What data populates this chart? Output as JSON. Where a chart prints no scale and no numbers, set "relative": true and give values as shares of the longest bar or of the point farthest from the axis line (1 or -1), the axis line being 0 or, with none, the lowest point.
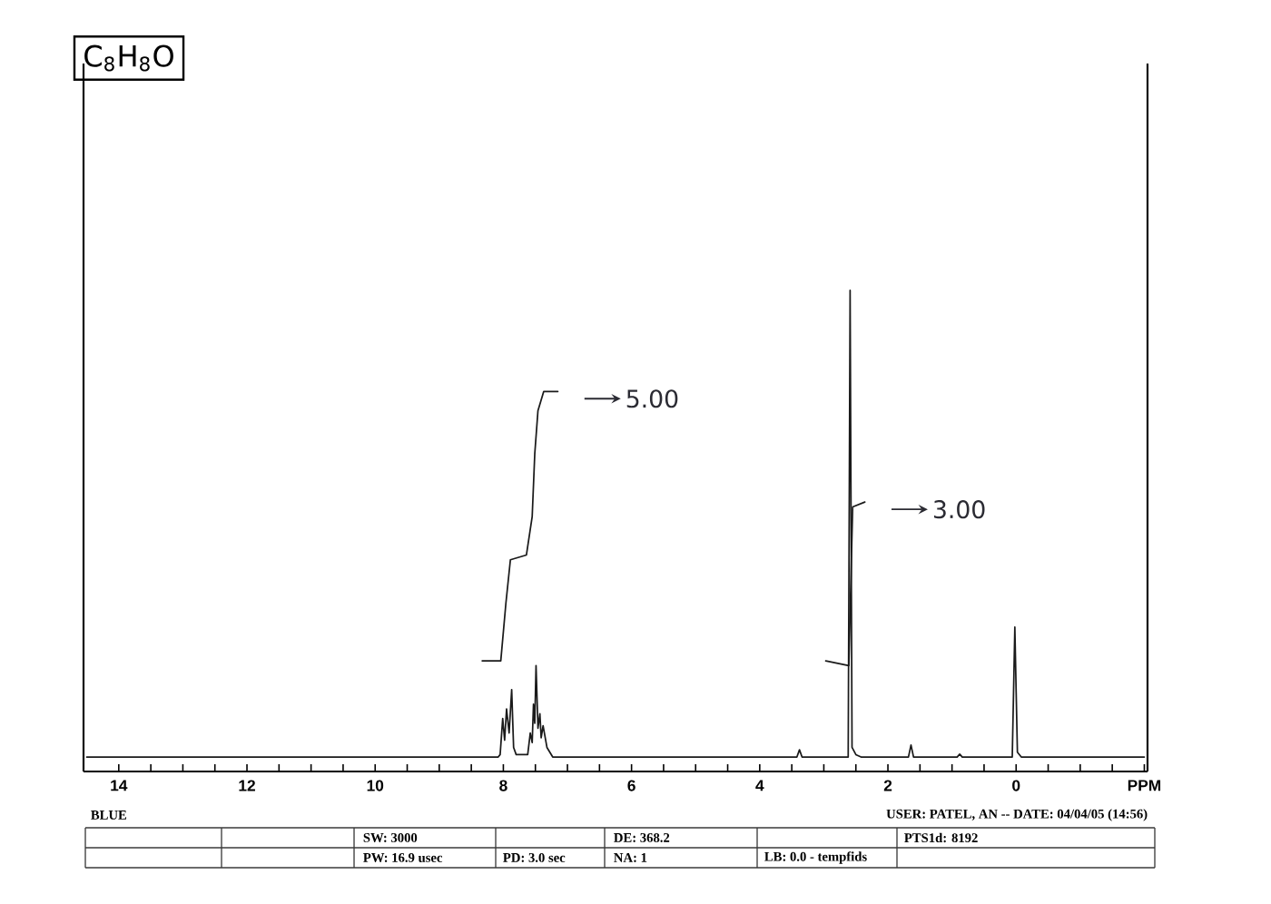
{
  "chart_data": {
    "type": "line",
    "title": "C$_{8}$H$_{8}$O",
    "relative": true,
    "xlim": [
      14.55,
      -2.05
    ],
    "xticks": [
      14,
      {
        "value": 13.5,
        "label": null
      },
      {
        "value": 13,
        "label": null
      },
      {
        "value": 12.5,
        "label": null
      },
      12,
      {
        "value": 11.5,
        "label": null
      },
      {
        "value": 11,
        "label": null
      },
      {
        "value": 10.5,
        "label": null
      },
      10,
      {
        "value": 9.5,
        "label": null
      },
      {
        "value": 9,
        "label": null
      },
      {
        "value": 8.5,
        "label": null
      },
      8,
      {
        "value": 7.5,
        "label": null
      },
      {
        "value": 7,
        "label": null
      },
      {
        "value": 6.5,
        "label": null
      },
      6,
      {
        "value": 5.5,
        "label": null
      },
      {
        "value": 5,
        "label": null
      },
      {
        "value": 4.5,
        "label": null
      },
      4,
      {
        "value": 3.5,
        "label": null
      },
      {
        "value": 3,
        "label": null
      },
      {
        "value": 2.5,
        "label": null
      },
      2,
      {
        "value": 1.5,
        "label": null
      },
      {
        "value": 1,
        "label": null
      },
      {
        "value": 0.5,
        "label": null
      },
      0,
      {
        "value": -0.5,
        "label": null
      },
      {
        "value": -1,
        "label": null
      },
      {
        "value": -1.5,
        "label": null
      },
      {
        "value": -2,
        "label": "PPM"
      }
    ],
    "series": [
      {
        "color": "#1a1a1a",
        "x": [
          14.5,
          8.08,
          8.05,
          8.01,
          7.98,
          7.95,
          7.91,
          7.87,
          7.84,
          7.8,
          7.62,
          7.58,
          7.55,
          7.53,
          7.51,
          7.49,
          7.46,
          7.43,
          7.41,
          7.38,
          7.32,
          7.23,
          3.42,
          3.38,
          3.34,
          2.62,
          2.59,
          2.56,
          2.5,
          2.42,
          1.68,
          1.64,
          1.6,
          0.92,
          0.88,
          0.84,
          0.06,
          0.02,
          -0.02,
          -0.08,
          -2.0
        ],
        "values": [
          0.03,
          0.03,
          0.035,
          0.11,
          0.065,
          0.13,
          0.08,
          0.17,
          0.05,
          0.035,
          0.035,
          0.08,
          0.06,
          0.14,
          0.1,
          0.22,
          0.09,
          0.12,
          0.07,
          0.095,
          0.05,
          0.03,
          0.03,
          0.045,
          0.03,
          0.03,
          1.0,
          0.05,
          0.035,
          0.03,
          0.03,
          0.055,
          0.03,
          0.03,
          0.036,
          0.03,
          0.03,
          0.3,
          0.04,
          0.03,
          0.03
        ]
      },
      {
        "color": "#1a1a1a",
        "x": [
          8.33,
          8.04,
          7.96,
          7.89,
          7.64,
          7.55,
          7.51,
          7.46,
          7.37,
          7.15
        ],
        "values": [
          0.23,
          0.23,
          0.35,
          0.44,
          0.45,
          0.53,
          0.66,
          0.75,
          0.79,
          0.79
        ]
      },
      {
        "color": "#1a1a1a",
        "x": [
          2.97,
          2.61,
          2.55,
          2.36
        ],
        "values": [
          0.23,
          0.22,
          0.55,
          0.56
        ]
      }
    ],
    "annotations": [
      {
        "text": "5.00",
        "x": 7.15,
        "y": 0.79
      },
      {
        "text": "3.00",
        "x": 2.36,
        "y": 0.56
      },
      "BLUE",
      "USER: PATEL, AN -- DATE: 04/04/05 (14:56)",
      "SW: 3000",
      "DE: 368.2",
      "PTS1d: 8192",
      "PW: 16.9 usec",
      "PD: 3.0 sec",
      "NA: 1",
      "LB: 0.0 - tempfids"
    ]
  }
}
